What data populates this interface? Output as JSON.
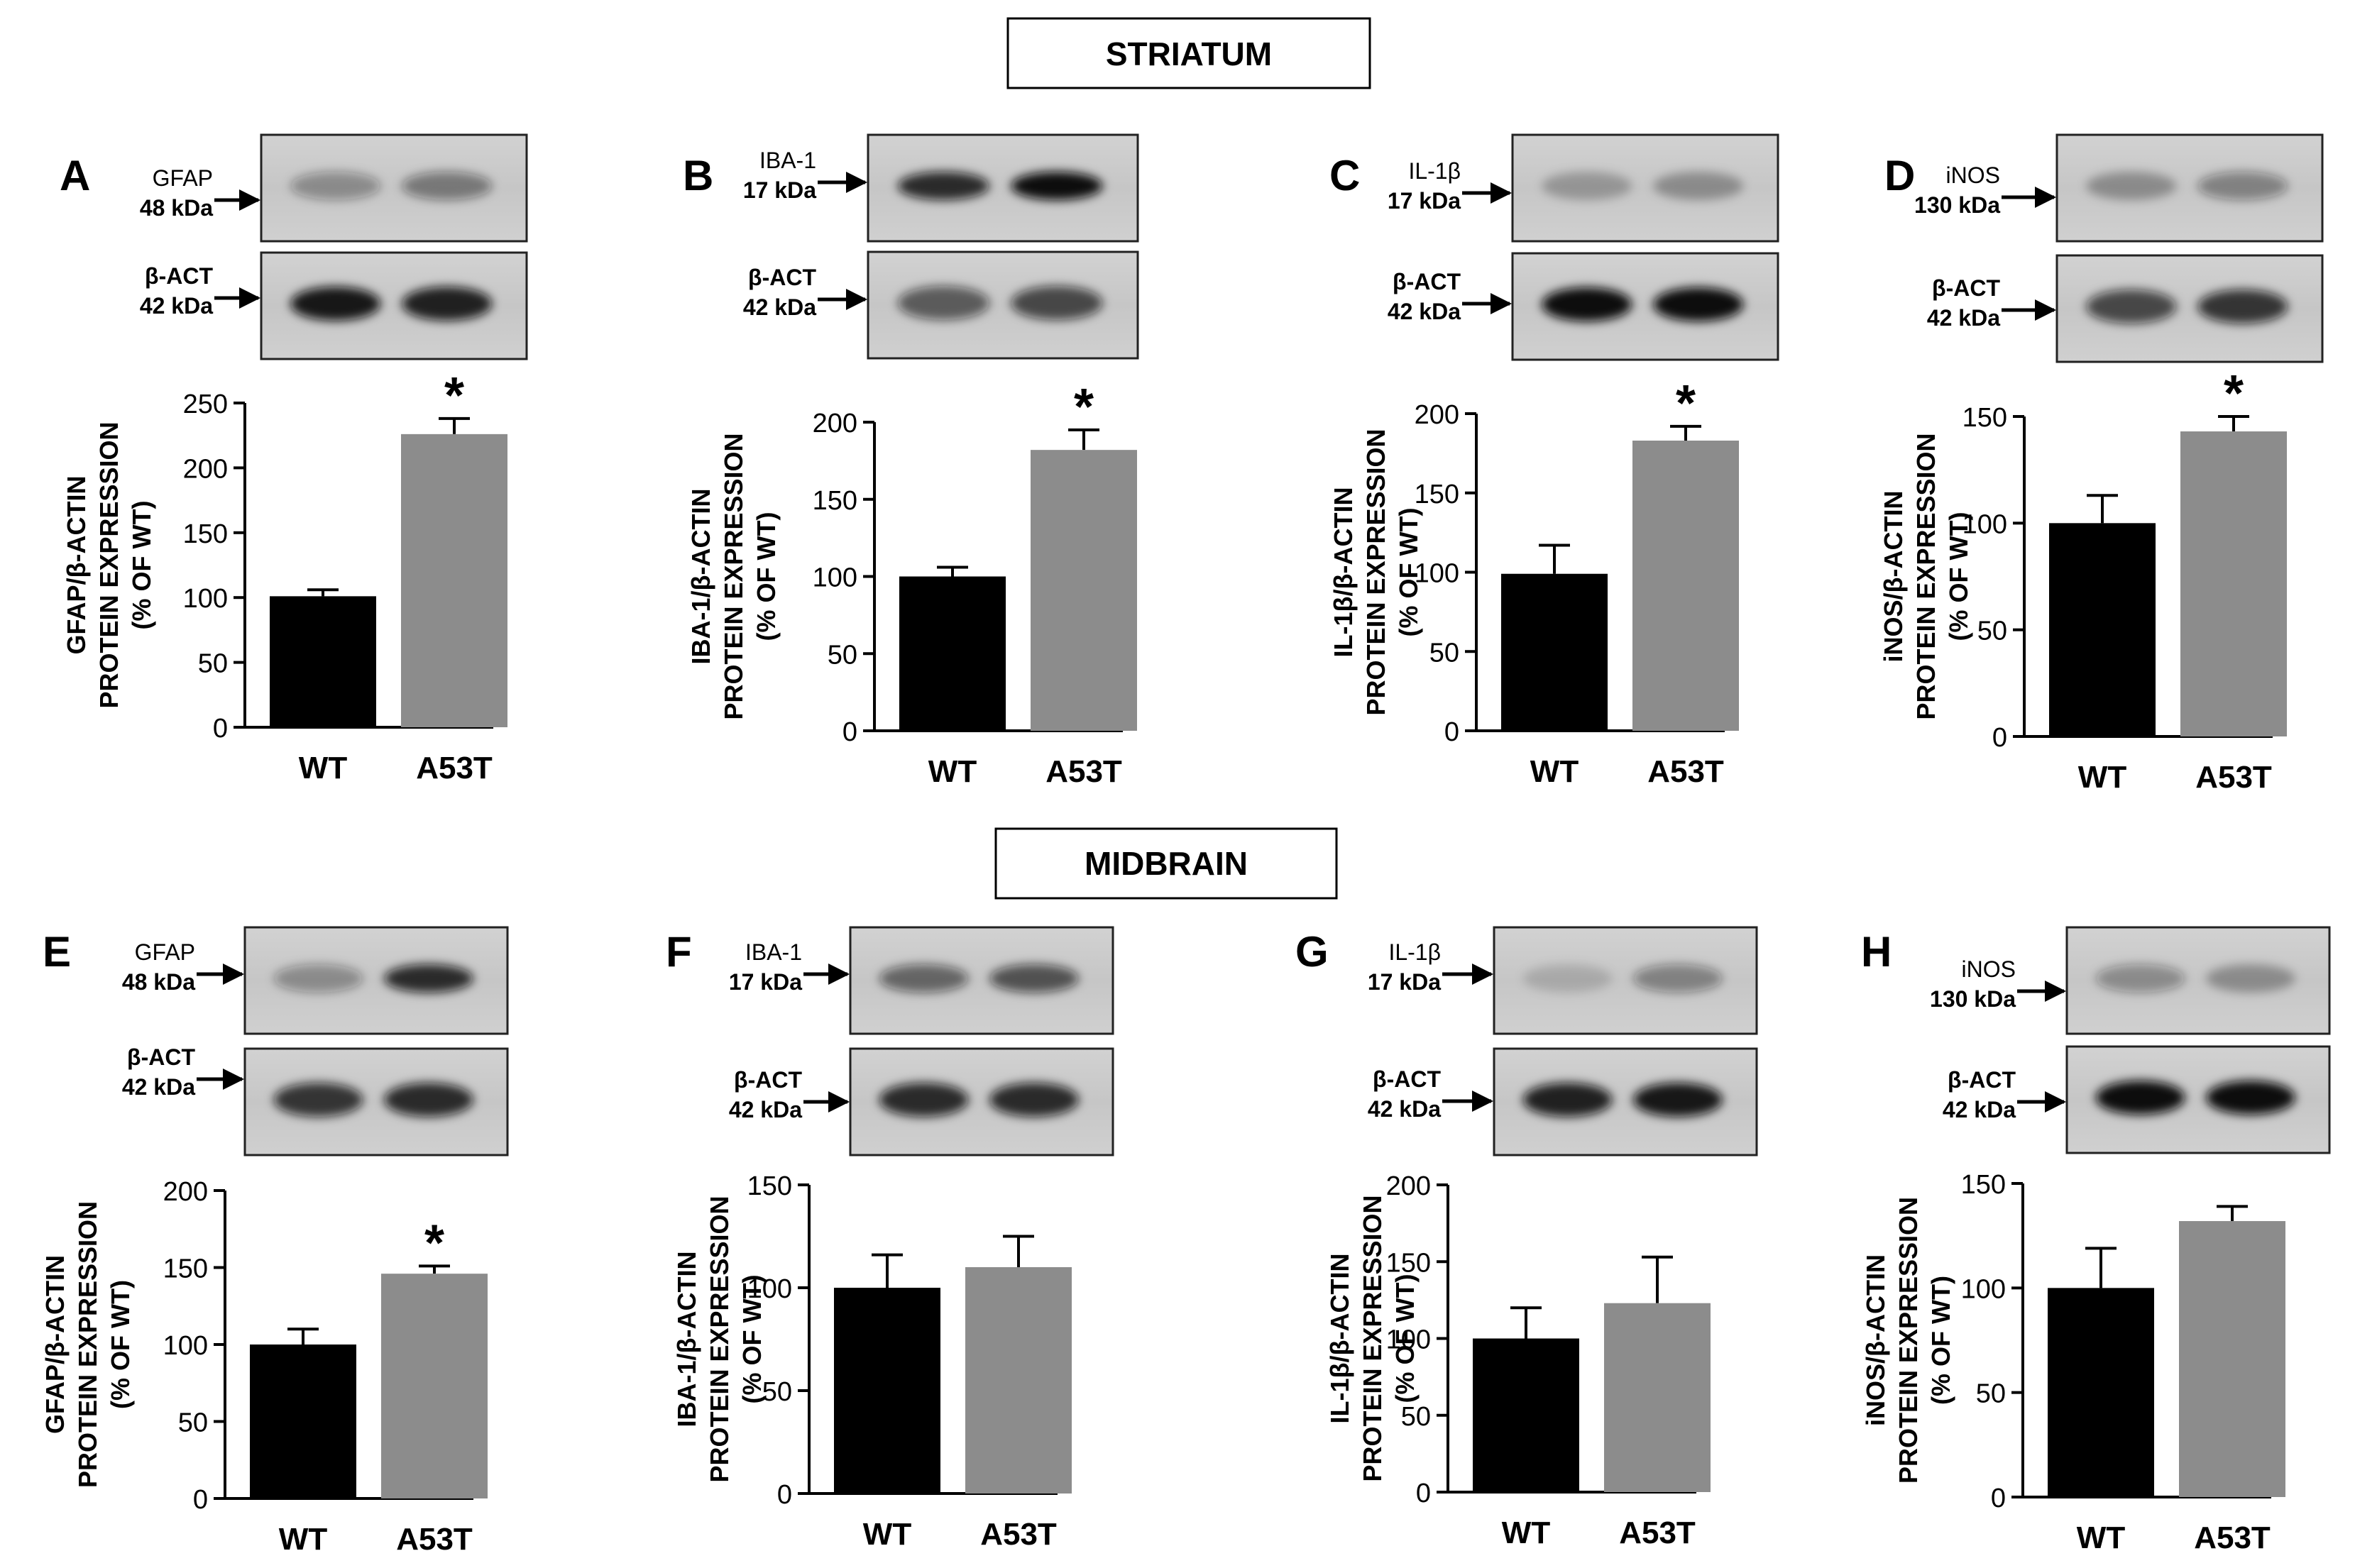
{
  "sections": [
    {
      "name": "STRIATUM"
    },
    {
      "name": "MIDBRAIN"
    }
  ],
  "chart_data": [
    {
      "panel": "A",
      "type": "bar",
      "protein": "GFAP",
      "weight": "48 kDa",
      "loading": "β-ACT",
      "loading_weight": "42 kDa",
      "ylabel": [
        "GFAP/β-ACTIN",
        "PROTEIN EXPRESSION",
        "(% OF WT)"
      ],
      "ylim": [
        0,
        250
      ],
      "yticks": [
        0,
        50,
        100,
        150,
        200,
        250
      ],
      "categories": [
        "WT",
        "A53T"
      ],
      "values": [
        101,
        226
      ],
      "errors": [
        5,
        12
      ],
      "significance": [
        "",
        "*"
      ],
      "colors": [
        "#000000",
        "#8c8c8c"
      ]
    },
    {
      "panel": "B",
      "type": "bar",
      "protein": "IBA-1",
      "weight": "17 kDa",
      "loading": "β-ACT",
      "loading_weight": "42 kDa",
      "ylabel": [
        "IBA-1/β-ACTIN",
        "PROTEIN EXPRESSION",
        "(% OF WT)"
      ],
      "ylim": [
        0,
        200
      ],
      "yticks": [
        0,
        50,
        100,
        150,
        200
      ],
      "categories": [
        "WT",
        "A53T"
      ],
      "values": [
        100,
        182
      ],
      "errors": [
        6,
        13
      ],
      "significance": [
        "",
        "*"
      ],
      "colors": [
        "#000000",
        "#8c8c8c"
      ]
    },
    {
      "panel": "C",
      "type": "bar",
      "protein": "IL-1β",
      "weight": "17 kDa",
      "loading": "β-ACT",
      "loading_weight": "42 kDa",
      "ylabel": [
        "IL-1β/β-ACTIN",
        "PROTEIN EXPRESSION",
        "(% OF WT)"
      ],
      "ylim": [
        0,
        200
      ],
      "yticks": [
        0,
        50,
        100,
        150,
        200
      ],
      "categories": [
        "WT",
        "A53T"
      ],
      "values": [
        99,
        183
      ],
      "errors": [
        18,
        9
      ],
      "significance": [
        "",
        "*"
      ],
      "colors": [
        "#000000",
        "#8c8c8c"
      ]
    },
    {
      "panel": "D",
      "type": "bar",
      "protein": "iNOS",
      "weight": "130 kDa",
      "loading": "β-ACT",
      "loading_weight": "42 kDa",
      "ylabel": [
        "iNOS/β-ACTIN",
        "PROTEIN EXPRESSION",
        "(% OF WT)"
      ],
      "ylim": [
        0,
        150
      ],
      "yticks": [
        0,
        50,
        100,
        150
      ],
      "categories": [
        "WT",
        "A53T"
      ],
      "values": [
        100,
        143
      ],
      "errors": [
        13,
        7
      ],
      "significance": [
        "",
        "*"
      ],
      "colors": [
        "#000000",
        "#8c8c8c"
      ]
    },
    {
      "panel": "E",
      "type": "bar",
      "protein": "GFAP",
      "weight": "48 kDa",
      "loading": "β-ACT",
      "loading_weight": "42 kDa",
      "ylabel": [
        "GFAP/β-ACTIN",
        "PROTEIN EXPRESSION",
        "(% OF WT)"
      ],
      "ylim": [
        0,
        200
      ],
      "yticks": [
        0,
        50,
        100,
        150,
        200
      ],
      "categories": [
        "WT",
        "A53T"
      ],
      "values": [
        100,
        146
      ],
      "errors": [
        10,
        5
      ],
      "significance": [
        "",
        "*"
      ],
      "colors": [
        "#000000",
        "#8c8c8c"
      ]
    },
    {
      "panel": "F",
      "type": "bar",
      "protein": "IBA-1",
      "weight": "17 kDa",
      "loading": "β-ACT",
      "loading_weight": "42 kDa",
      "ylabel": [
        "IBA-1/β-ACTIN",
        "PROTEIN EXPRESSION",
        "(% OF WT)"
      ],
      "ylim": [
        0,
        150
      ],
      "yticks": [
        0,
        50,
        100,
        150
      ],
      "categories": [
        "WT",
        "A53T"
      ],
      "values": [
        100,
        110
      ],
      "errors": [
        16,
        15
      ],
      "significance": [
        "",
        ""
      ],
      "colors": [
        "#000000",
        "#8c8c8c"
      ]
    },
    {
      "panel": "G",
      "type": "bar",
      "protein": "IL-1β",
      "weight": "17 kDa",
      "loading": "β-ACT",
      "loading_weight": "42 kDa",
      "ylabel": [
        "IL-1β/β-ACTIN",
        "PROTEIN EXPRESSION",
        "(% OF WT)"
      ],
      "ylim": [
        0,
        200
      ],
      "yticks": [
        0,
        50,
        100,
        150,
        200
      ],
      "categories": [
        "WT",
        "A53T"
      ],
      "values": [
        100,
        123
      ],
      "errors": [
        20,
        30
      ],
      "significance": [
        "",
        ""
      ],
      "colors": [
        "#000000",
        "#8c8c8c"
      ]
    },
    {
      "panel": "H",
      "type": "bar",
      "protein": "iNOS",
      "weight": "130 kDa",
      "loading": "β-ACT",
      "loading_weight": "42 kDa",
      "ylabel": [
        "iNOS/β-ACTIN",
        "PROTEIN EXPRESSION",
        "(% OF WT)"
      ],
      "ylim": [
        0,
        150
      ],
      "yticks": [
        0,
        50,
        100,
        150
      ],
      "categories": [
        "WT",
        "A53T"
      ],
      "values": [
        100,
        132
      ],
      "errors": [
        19,
        7
      ],
      "significance": [
        "",
        ""
      ],
      "colors": [
        "#000000",
        "#8c8c8c"
      ]
    }
  ]
}
